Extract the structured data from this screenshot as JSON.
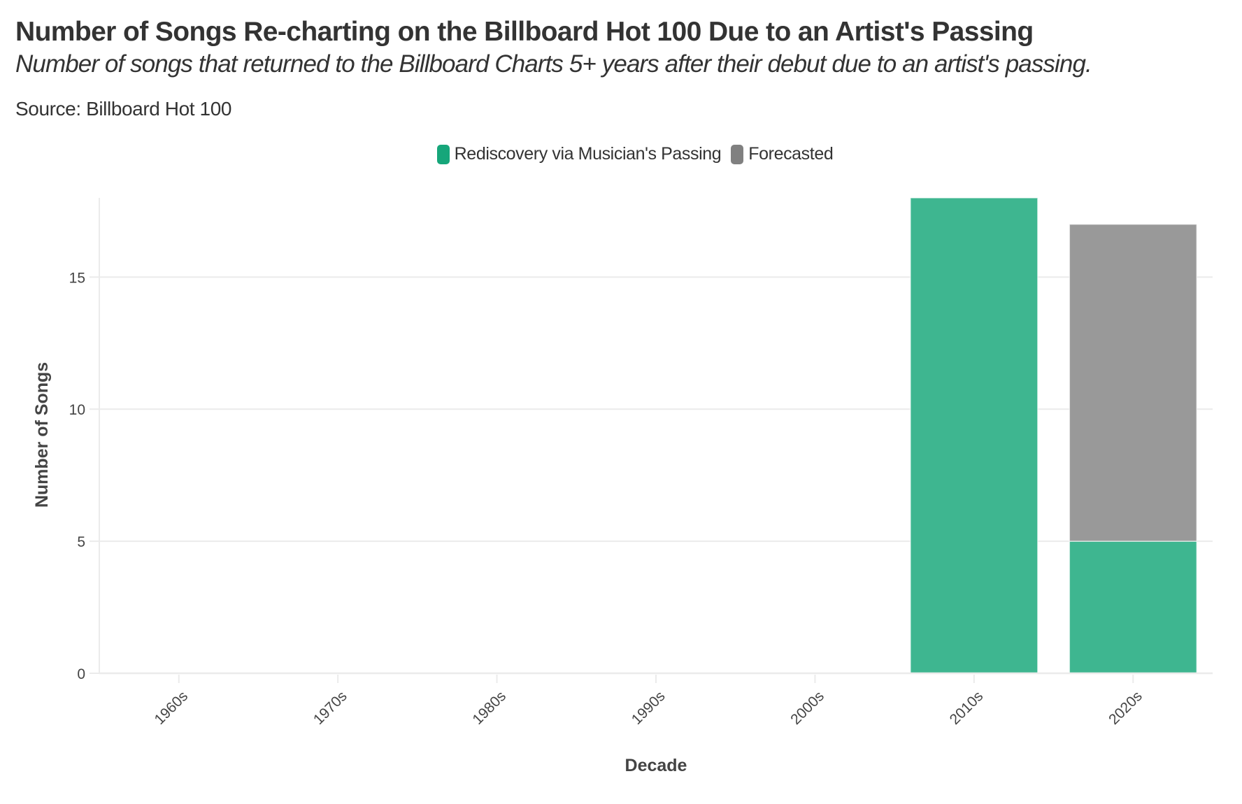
{
  "header": {
    "title": "Number of Songs Re-charting on the Billboard Hot 100 Due to an Artist's Passing",
    "subtitle": "Number of songs that returned to the Billboard Charts 5+ years after their debut due to an artist's passing.",
    "source": "Source: Billboard Hot 100"
  },
  "legend": {
    "items": [
      {
        "label": "Rediscovery via Musician's Passing",
        "color": "#16a67a"
      },
      {
        "label": "Forecasted",
        "color": "#808080"
      }
    ]
  },
  "colors": {
    "rediscovery_bar": "#3eb690",
    "forecast_bar": "#999999",
    "grid": "#ebebeb",
    "text": "#333333",
    "axis_text": "#444444"
  },
  "chart_data": {
    "type": "bar",
    "stacked": true,
    "title": "Number of Songs Re-charting on the Billboard Hot 100 Due to an Artist's Passing",
    "subtitle": "Number of songs that returned to the Billboard Charts 5+ years after their debut due to an artist's passing.",
    "source": "Source: Billboard Hot 100",
    "xlabel": "Decade",
    "ylabel": "Number of Songs",
    "categories": [
      "1960s",
      "1970s",
      "1980s",
      "1990s",
      "2000s",
      "2010s",
      "2020s"
    ],
    "series": [
      {
        "name": "Rediscovery via Musician's Passing",
        "values": [
          0,
          0,
          0,
          0,
          0,
          18,
          5
        ]
      },
      {
        "name": "Forecasted",
        "values": [
          0,
          0,
          0,
          0,
          0,
          0,
          12
        ]
      }
    ],
    "ylim": [
      0,
      18
    ],
    "yticks": [
      0,
      5,
      10,
      15
    ],
    "grid": true,
    "legend_position": "top-center",
    "x_tick_rotation": -45
  }
}
